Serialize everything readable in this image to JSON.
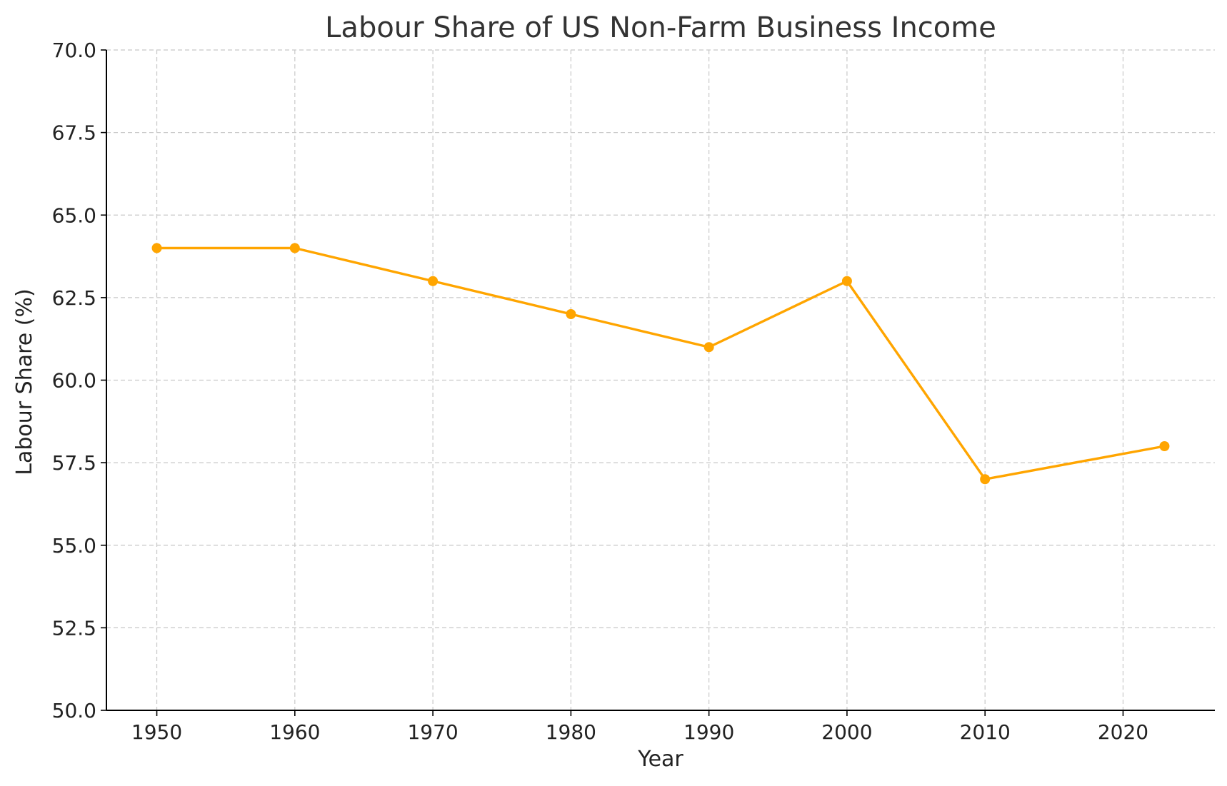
{
  "chart_data": {
    "type": "line",
    "title": "Labour Share of US Non-Farm Business Income",
    "xlabel": "Year",
    "ylabel": "Labour Share (%)",
    "x": [
      1950,
      1960,
      1970,
      1980,
      1990,
      2000,
      2010,
      2023
    ],
    "series": [
      {
        "values": [
          64,
          64,
          63,
          62,
          61,
          63,
          57,
          58
        ],
        "color": "#FFA500",
        "marker": "circle"
      }
    ],
    "xticks": [
      1950,
      1960,
      1970,
      1980,
      1990,
      2000,
      2010,
      2020
    ],
    "xtick_labels": [
      "1950",
      "1960",
      "1970",
      "1980",
      "1990",
      "2000",
      "2010",
      "2020"
    ],
    "yticks": [
      50,
      52.5,
      55,
      57.5,
      60,
      62.5,
      65,
      67.5,
      70
    ],
    "ytick_labels": [
      "50.0",
      "52.5",
      "55.0",
      "57.5",
      "60.0",
      "62.5",
      "65.0",
      "67.5",
      "70.0"
    ],
    "xlim": [
      1946.35,
      2026.65
    ],
    "ylim": [
      50,
      70
    ],
    "grid": true,
    "legend": false
  }
}
